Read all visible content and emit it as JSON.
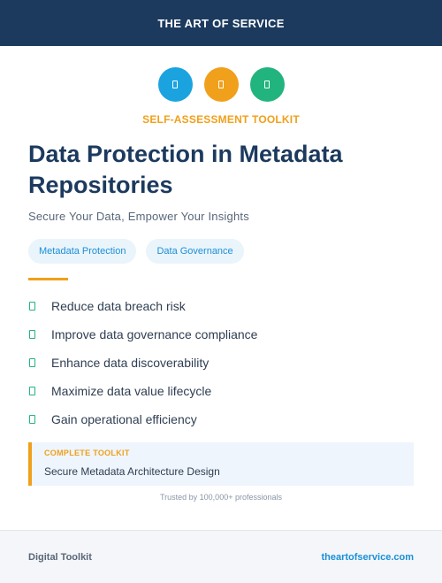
{
  "header": {
    "brand": "THE ART OF SERVICE"
  },
  "icons": [
    {
      "name": "document-icon",
      "color": "#1ba3e0"
    },
    {
      "name": "document-icon",
      "color": "#f0a01a"
    },
    {
      "name": "document-icon",
      "color": "#22b47e"
    }
  ],
  "eyebrow": "SELF-ASSESSMENT TOOLKIT",
  "title": "Data Protection in Metadata Repositories",
  "subtitle": "Secure Your Data, Empower Your Insights",
  "tags": [
    "Metadata Protection",
    "Data Governance"
  ],
  "benefits": [
    "Reduce data breach risk",
    "Improve data governance compliance",
    "Enhance data discoverability",
    "Maximize data value lifecycle",
    "Gain operational efficiency"
  ],
  "callout": {
    "label": "COMPLETE TOOLKIT",
    "value": "Secure Metadata Architecture Design"
  },
  "trust": "Trusted by 100,000+ professionals",
  "footer": {
    "left": "Digital Toolkit",
    "right": "theartofservice.com"
  },
  "colors": {
    "navy": "#1c3a5e",
    "orange": "#f0a01a",
    "blue": "#1ba3e0",
    "green": "#22b47e"
  }
}
